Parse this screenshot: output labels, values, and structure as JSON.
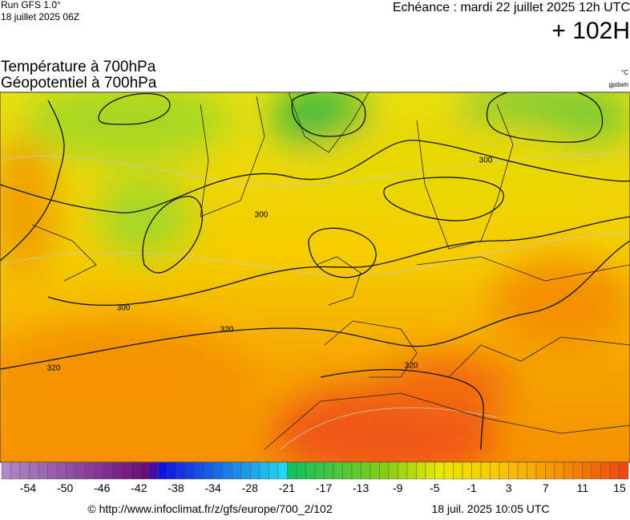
{
  "header": {
    "run": "Run GFS 1.0°",
    "date": "18 juillet 2025 06Z",
    "echeance": "Echéance : mardi 22 juillet 2025 12h UTC",
    "lead": "+ 102H"
  },
  "titles": [
    "Température à 700hPa",
    "Géopotentiel à 700hPa"
  ],
  "units": [
    "°C",
    "gpdam"
  ],
  "contour_labels": [
    300,
    300,
    300,
    320,
    320,
    320
  ],
  "colorbar": {
    "ticks": [
      -54,
      -50,
      -46,
      -42,
      -38,
      -34,
      -28,
      -21,
      -17,
      -13,
      -9,
      -5,
      -1,
      3,
      7,
      11,
      15
    ]
  },
  "footer": {
    "url": "© http://www.infoclimat.fr/z/gfs/europe/700_2/102",
    "timestamp": "18 juil. 2025 10:05 UTC"
  }
}
